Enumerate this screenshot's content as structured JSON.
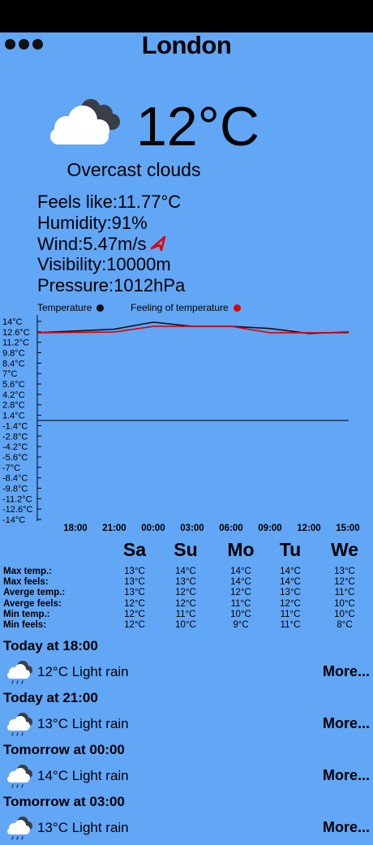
{
  "header": {
    "city": "London"
  },
  "current": {
    "temperature": "12°C",
    "condition": "Overcast clouds",
    "details": [
      "Feels like:11.77°C",
      "Humidity:91%",
      "Wind:5.47m/s",
      "Visibility:10000m",
      "Pressure:1012hPa"
    ],
    "icon": "overcast-clouds-icon",
    "wind_icon": "wind-direction-arrow-icon"
  },
  "chart_data": {
    "type": "line",
    "legend": [
      "Temperature",
      "Feeling of temperature"
    ],
    "legend_placement": "top",
    "x": [
      "18:00",
      "21:00",
      "00:00",
      "03:00",
      "06:00",
      "09:00",
      "12:00",
      "15:00"
    ],
    "series": [
      {
        "name": "Temperature",
        "color": "#111111",
        "values": [
          12.4,
          12.9,
          13.9,
          13.3,
          13.3,
          13.0,
          12.3,
          12.5
        ]
      },
      {
        "name": "Feeling of temperature",
        "color": "#e00000",
        "values": [
          12.4,
          12.5,
          13.3,
          13.3,
          13.3,
          12.4,
          12.4,
          12.4
        ]
      }
    ],
    "y_ticks": [
      "14°C",
      "12.6°C",
      "11.2°C",
      "9.8°C",
      "8.4°C",
      "7°C",
      "5.6°C",
      "4.2°C",
      "2.8°C",
      "1.4°C",
      "-1.4°C",
      "-2.8°C",
      "-4.2°C",
      "-5.6°C",
      "-7°C",
      "-8.4°C",
      "-9.8°C",
      "-11.2°C",
      "-12.6°C",
      "-14°C"
    ],
    "ylim": [
      -14,
      14
    ],
    "zero_line": true
  },
  "forecast_days": {
    "days": [
      "Sa",
      "Su",
      "Mo",
      "Tu",
      "We"
    ],
    "row_labels": [
      "Max temp.:",
      "Max feels:",
      "Averge temp.:",
      "Averge feels:",
      "Min temp.:",
      "Min feels:"
    ],
    "columns": [
      [
        "13°C",
        "13°C",
        "13°C",
        "12°C",
        "12°C",
        "12°C"
      ],
      [
        "14°C",
        "13°C",
        "12°C",
        "12°C",
        "11°C",
        "10°C"
      ],
      [
        "14°C",
        "14°C",
        "12°C",
        "11°C",
        "10°C",
        "9°C"
      ],
      [
        "14°C",
        "14°C",
        "13°C",
        "12°C",
        "11°C",
        "11°C"
      ],
      [
        "13°C",
        "12°C",
        "11°C",
        "10°C",
        "10°C",
        "8°C"
      ]
    ]
  },
  "hourly": [
    {
      "title": "Today at 18:00",
      "text": "12°C Light rain",
      "more": "More...",
      "icon": "light-rain-icon"
    },
    {
      "title": "Today at 21:00",
      "text": "13°C Light rain",
      "more": "More...",
      "icon": "light-rain-icon"
    },
    {
      "title": "Tomorrow at 00:00",
      "text": "14°C Light rain",
      "more": "More...",
      "icon": "light-rain-icon"
    },
    {
      "title": "Tomorrow at 03:00",
      "text": "13°C Light rain",
      "more": "More...",
      "icon": "light-rain-icon"
    }
  ]
}
